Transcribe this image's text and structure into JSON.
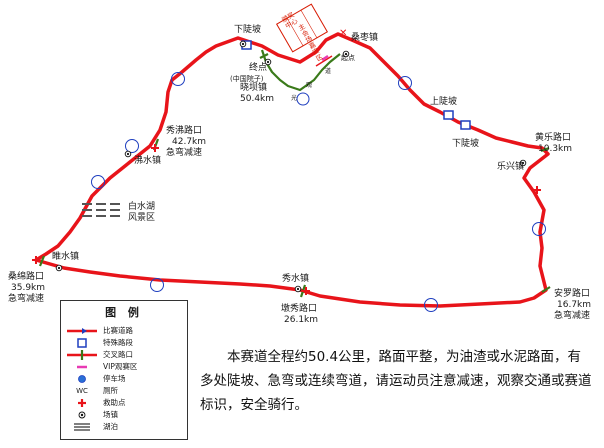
{
  "places": {
    "xialupo_top": "下陡坡",
    "sangzaozhen": "桑枣镇",
    "zhongdian": "终点",
    "zhongguo_yuanzi": "(中国院子)",
    "xiaobazhen": "晓坝镇",
    "xiaobazhen_km": "50.4km",
    "shanglupo": "上陡坡",
    "xialupo_right": "下陡坡",
    "huangle_lukou": "黄乐路口",
    "huangle_km": "10.3km",
    "lexingzhen": "乐兴镇",
    "xiuyong_lukou": "秀沸路口",
    "xiuyong_km": "42.7km",
    "xiuyong_warn": "急弯减速",
    "yongshuizhen": "沸水镇",
    "baishuihu": "白水湖",
    "fengjingqu": "风景区",
    "suishuizhen": "睢水镇",
    "sangmian_lukou": "桑绵路口",
    "sangmian_km": "35.9km",
    "sangmian_warn": "急弯减速",
    "xiushuizhen": "秀水镇",
    "dunxiu_lukou": "墩秀路口",
    "dunxiu_km": "26.1km",
    "anluo_lukou": "安罗路口",
    "anluo_km": "16.7km",
    "anluo_warn": "急弯减速",
    "start_zone": "起点",
    "vip_zone": "主会场嘉宾区",
    "finish_zone": "颁奖中心",
    "route_sign_a": "观",
    "route_sign_b": "光",
    "route_sign_c": "道"
  },
  "legend": {
    "title": "图 例",
    "items": [
      {
        "label": "比赛道路",
        "icon": "race-road"
      },
      {
        "label": "特殊路段",
        "icon": "special-section"
      },
      {
        "label": "交叉路口",
        "icon": "intersection"
      },
      {
        "label": "VIP观赛区",
        "icon": "vip-area"
      },
      {
        "label": "停车场",
        "icon": "parking"
      },
      {
        "label": "厕所",
        "icon": "toilet",
        "symbol": "WC"
      },
      {
        "label": "救助点",
        "icon": "aid-point"
      },
      {
        "label": "场镇",
        "icon": "town"
      },
      {
        "label": "湖泊",
        "icon": "lake"
      }
    ]
  },
  "description": "本赛道全程约50.4公里，路面平整，为油渣或水泥路面，有多处陡坡、急弯或连续弯道，请运动员注意减速，观察交通或赛道标识，安全骑行。",
  "colors": {
    "route": "#e8141a",
    "branch": "#3a7a1a",
    "marker": "#1f3fbf",
    "aid": "#e8141a",
    "lake": "#555555"
  }
}
